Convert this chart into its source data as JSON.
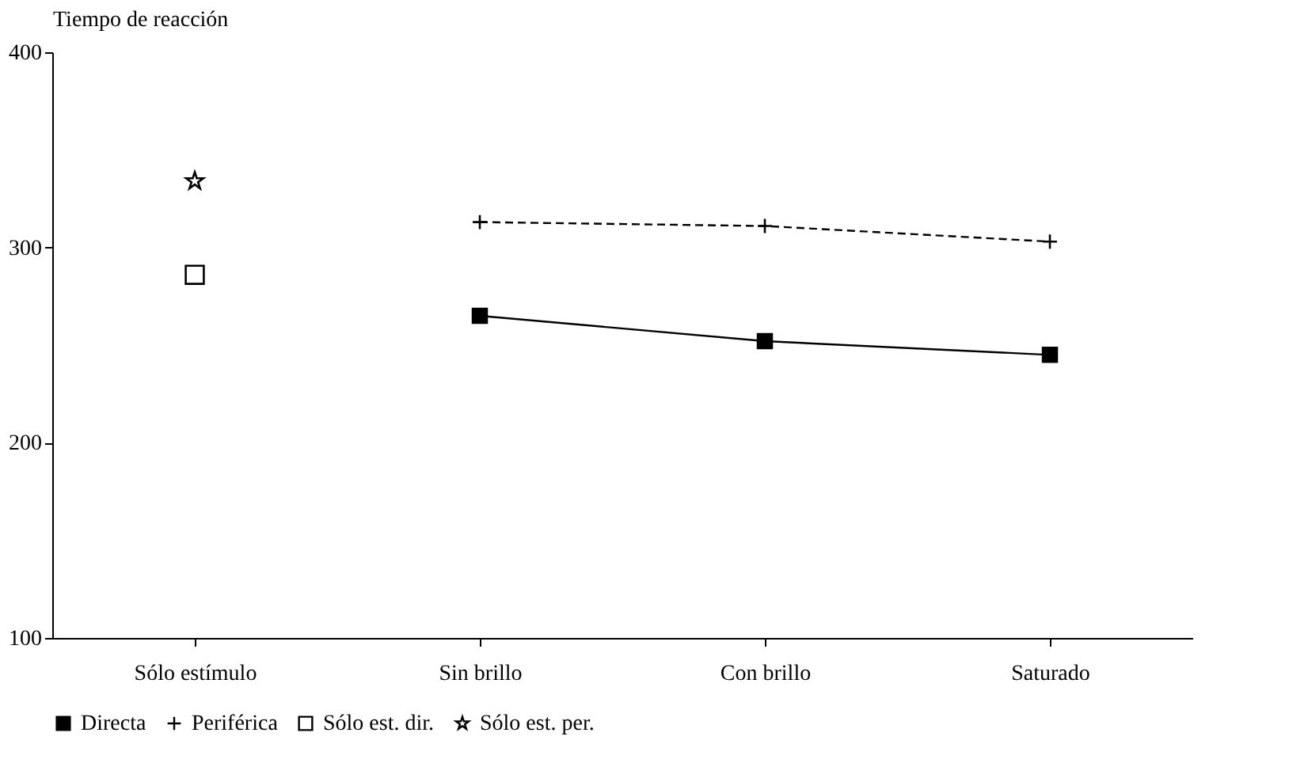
{
  "chart_data": {
    "type": "line",
    "ylabel": "Tiempo de reacción",
    "categories": [
      "Sólo estímulo",
      "Sin brillo",
      "Con brillo",
      "Saturado"
    ],
    "ylim": [
      100,
      400
    ],
    "yticks": [
      100,
      200,
      300,
      400
    ],
    "grid": false,
    "legend": "bottom",
    "series": [
      {
        "name": "Directa",
        "color": "#000000",
        "marker": "square",
        "line_style": "solid",
        "values": [
          null,
          265,
          252,
          245
        ]
      },
      {
        "name": "Periférica",
        "color": "#000000",
        "marker": "cross",
        "line_style": "dashed",
        "values": [
          null,
          313,
          311,
          303
        ]
      },
      {
        "name": "Sólo est. dir.",
        "type": "scatter",
        "color": "#000000",
        "marker": "square",
        "values": [
          286,
          null,
          null,
          null
        ]
      },
      {
        "name": "Sólo est. per.",
        "type": "scatter",
        "color": "#000000",
        "marker": "star",
        "values": [
          334,
          null,
          null,
          null
        ]
      }
    ]
  }
}
